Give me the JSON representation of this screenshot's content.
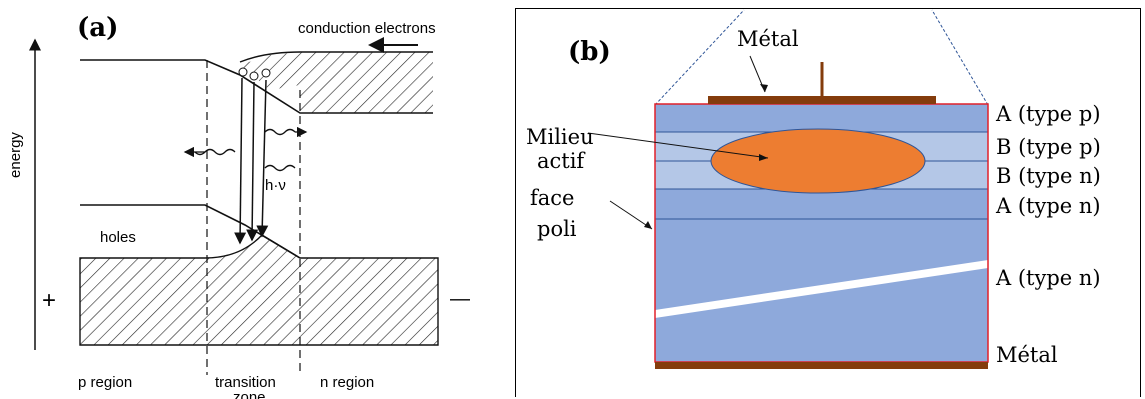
{
  "panel_a": {
    "label": "(a)",
    "axis_label": "energy",
    "conduction_label": "conduction electrons",
    "holes_label": "holes",
    "photon_label": "h·ν",
    "plus_sign": "+",
    "minus_sign": "—",
    "region_p": "p region",
    "region_transition": "transition",
    "region_transition_2": "zone",
    "region_n": "n region"
  },
  "panel_b": {
    "label": "(b)",
    "metal_top": "Métal",
    "metal_bottom": "Métal",
    "active_label_1": "Milieu",
    "active_label_2": "actif",
    "polished_label_1": "face",
    "polished_label_2": "poli",
    "layers": [
      "A  (type p)",
      "B  (type p)",
      "B  (type n)",
      "A  (type n)",
      "A  (type n)"
    ],
    "colors": {
      "substrate": "#8ea9db",
      "layer_b": "#b4c7e7",
      "active": "#ed7d31",
      "metal": "#843c0c",
      "frame": "#e0202a"
    }
  }
}
